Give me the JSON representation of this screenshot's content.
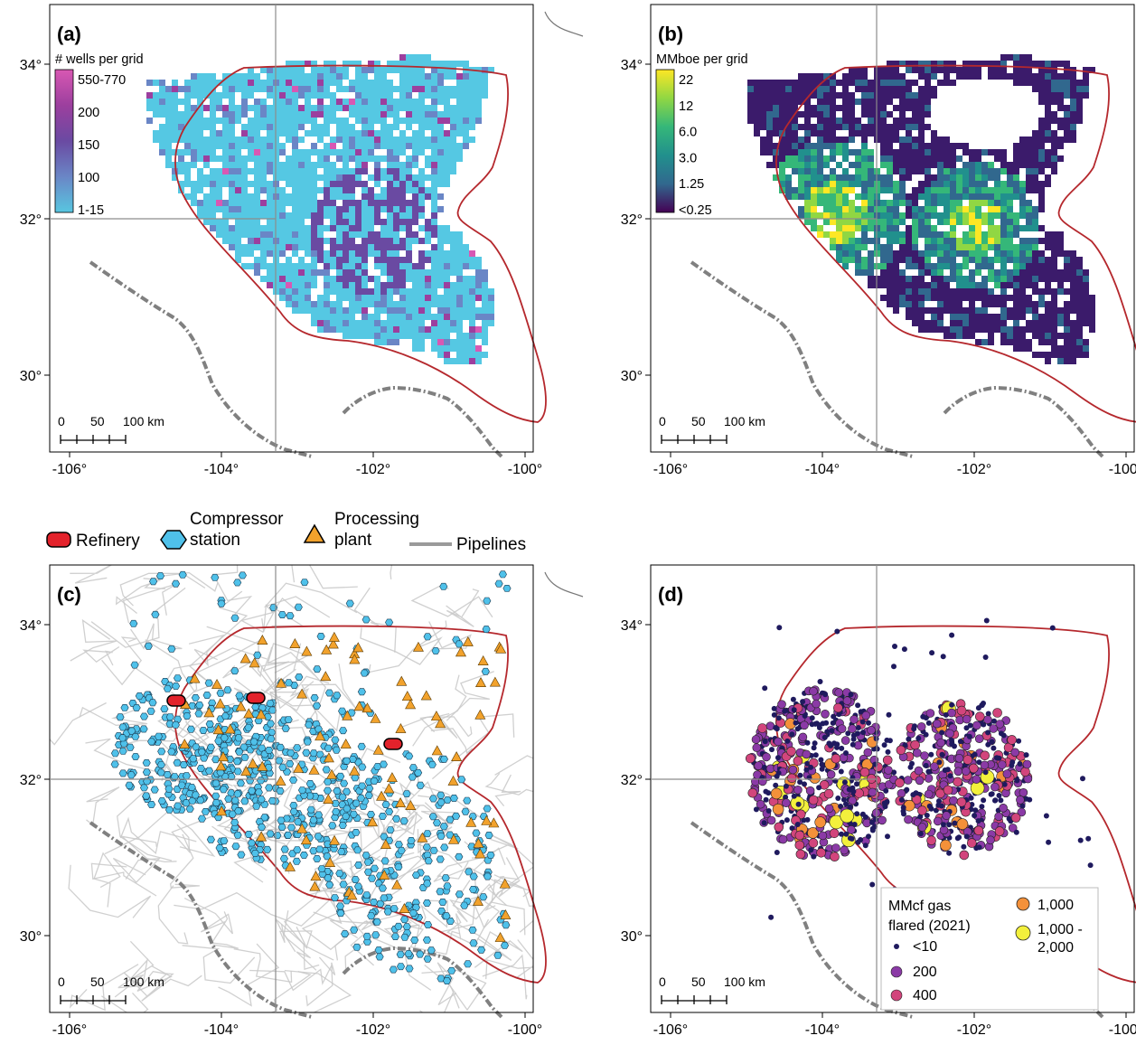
{
  "panels": [
    {
      "id": "a",
      "label": "(a)",
      "legend_title": "# wells per grid",
      "legend_entries": [
        "550-770",
        "200",
        "150",
        "100",
        "1-15"
      ],
      "colors": [
        "#d858b3",
        "#9c3f9e",
        "#6a4aa2",
        "#6a86c6",
        "#58c6e0"
      ],
      "base_color": "#55c8e3"
    },
    {
      "id": "b",
      "label": "(b)",
      "legend_title": "MMboe per grid",
      "legend_entries": [
        "22",
        "12",
        "6.0",
        "3.0",
        "1.25",
        "<0.25"
      ],
      "colors": [
        "#fde725",
        "#90d743",
        "#35b779",
        "#21908d",
        "#31688e",
        "#440154"
      ],
      "base_color": "#3b1b6b"
    },
    {
      "id": "c",
      "label": "(c)"
    },
    {
      "id": "d",
      "label": "(d)",
      "legend_title_lines": [
        "MMcf gas",
        "flared (2021)"
      ],
      "legend_entries": [
        "<10",
        "200",
        "400",
        "1,000",
        "1,000 -",
        "2,000"
      ],
      "colors": [
        "#1f1a5e",
        "#8b3aa6",
        "#d2457c",
        "#f4913a",
        "#f3f03c"
      ]
    }
  ],
  "axes": {
    "x_ticks": [
      "-106°",
      "-104°",
      "-102°",
      "-100°"
    ],
    "y_ticks": [
      "34°",
      "32°",
      "30°"
    ]
  },
  "scale_bar": {
    "labels": [
      "0",
      "50",
      "100 km"
    ]
  },
  "infrastructure_legend": {
    "refinery": "Refinery",
    "compressor_line1": "Compressor",
    "compressor_line2": "station",
    "processing_line1": "Processing",
    "processing_line2": "plant",
    "pipelines": "Pipelines",
    "refinery_color": "#e3222b",
    "compressor_color": "#4fc1ea",
    "processing_color": "#f2a22c",
    "pipeline_color": "#c8c8c8"
  },
  "colors": {
    "basin_outline": "#b5282d",
    "border_dashed": "#808080",
    "graticule": "#8c8c8c"
  }
}
